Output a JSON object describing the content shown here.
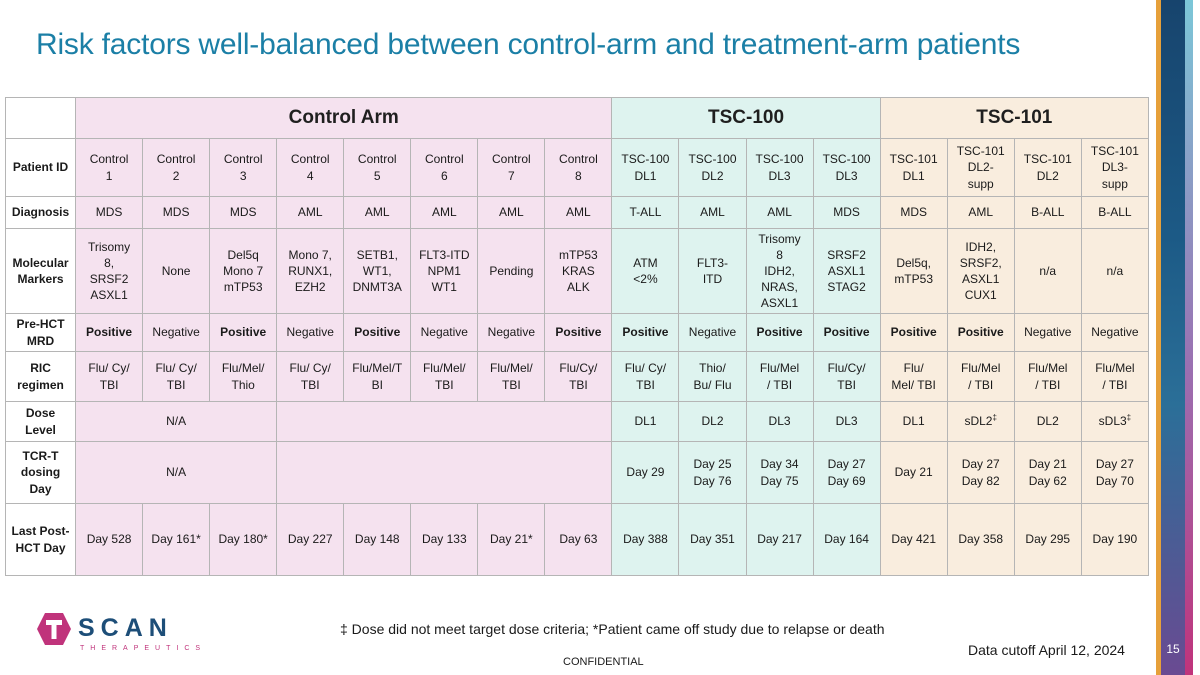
{
  "title": "Risk factors well-balanced between control-arm and treatment-arm patients",
  "groups": {
    "control": "Control Arm",
    "tsc100": "TSC-100",
    "tsc101": "TSC-101"
  },
  "row_labels": {
    "patient_id": "Patient ID",
    "diagnosis": "Diagnosis",
    "molecular": "Molecular\nMarkers",
    "mrd": "Pre-HCT\nMRD",
    "ric": "RIC\nregimen",
    "dose": "Dose\nLevel",
    "tcr": "TCR-T\ndosing\nDay",
    "last": "Last Post-\nHCT Day"
  },
  "patients": [
    "Control\n1",
    "Control\n2",
    "Control\n3",
    "Control\n4",
    "Control\n5",
    "Control\n6",
    "Control\n7",
    "Control\n8",
    "TSC-100\nDL1",
    "TSC-100\nDL2",
    "TSC-100\nDL3",
    "TSC-100\nDL3",
    "TSC-101\nDL1",
    "TSC-101\nDL2-\nsupp",
    "TSC-101\nDL2",
    "TSC-101\nDL3-\nsupp"
  ],
  "diagnosis": [
    "MDS",
    "MDS",
    "MDS",
    "AML",
    "AML",
    "AML",
    "AML",
    "AML",
    "T-ALL",
    "AML",
    "AML",
    "MDS",
    "MDS",
    "AML",
    "B-ALL",
    "B-ALL"
  ],
  "molecular": [
    "Trisomy\n8,\nSRSF2\nASXL1",
    "None",
    "Del5q\nMono 7\nmTP53",
    "Mono 7,\nRUNX1,\nEZH2",
    "SETB1,\nWT1,\nDNMT3A",
    "FLT3-ITD\nNPM1\nWT1",
    "Pending",
    "mTP53\nKRAS\nALK",
    "ATM\n<2%",
    "FLT3-\nITD",
    "Trisomy\n8\nIDH2,\nNRAS,\nASXL1",
    "SRSF2\nASXL1\nSTAG2",
    "Del5q,\nmTP53",
    "IDH2,\nSRSF2,\nASXL1\nCUX1",
    "n/a",
    "n/a"
  ],
  "mrd": [
    "Positive",
    "Negative",
    "Positive",
    "Negative",
    "Positive",
    "Negative",
    "Negative",
    "Positive",
    "Positive",
    "Negative",
    "Positive",
    "Positive",
    "Positive",
    "Positive",
    "Negative",
    "Negative"
  ],
  "ric": [
    "Flu/ Cy/\nTBI",
    "Flu/ Cy/\nTBI",
    "Flu/Mel/\nThio",
    "Flu/ Cy/\nTBI",
    "Flu/Mel/T\nBI",
    "Flu/Mel/\nTBI",
    "Flu/Mel/\nTBI",
    "Flu/Cy/\nTBI",
    "Flu/ Cy/\nTBI",
    "Thio/\nBu/ Flu",
    "Flu/Mel\n/ TBI",
    "Flu/Cy/\nTBI",
    "Flu/\nMel/ TBI",
    "Flu/Mel\n/ TBI",
    "Flu/Mel\n/ TBI",
    "Flu/Mel\n/ TBI"
  ],
  "control_na": "N/A",
  "dose": [
    "DL1",
    "DL2",
    "DL3",
    "DL3",
    "DL1",
    "sDL2",
    "DL2",
    "sDL3"
  ],
  "dose_mark": "‡",
  "tcr": [
    "Day 29",
    "Day 25\nDay 76",
    "Day 34\nDay 75",
    "Day 27\nDay 69",
    "Day 21",
    "Day 27\nDay 82",
    "Day 21\nDay 62",
    "Day 27\nDay 70"
  ],
  "last": [
    "Day 528",
    "Day 161*",
    "Day 180*",
    "Day 227",
    "Day 148",
    "Day 133",
    "Day 21*",
    "Day 63",
    "Day 388",
    "Day 351",
    "Day 217",
    "Day 164",
    "Day 421",
    "Day 358",
    "Day 295",
    "Day 190"
  ],
  "footnote": "‡ Dose did not meet target dose criteria; *Patient came off study due to relapse or death",
  "cutoff": "Data cutoff April 12, 2024",
  "confidential": "CONFIDENTIAL",
  "page_number": "15",
  "logo": {
    "word": "SCAN",
    "sub": "THERAPEUTICS"
  },
  "colors": {
    "title": "#1b7fa6",
    "control": "#f5e2ef",
    "tsc100": "#def3ef",
    "tsc101": "#f9edde",
    "logo_navy": "#1d4e78",
    "logo_magenta": "#c0337b"
  }
}
